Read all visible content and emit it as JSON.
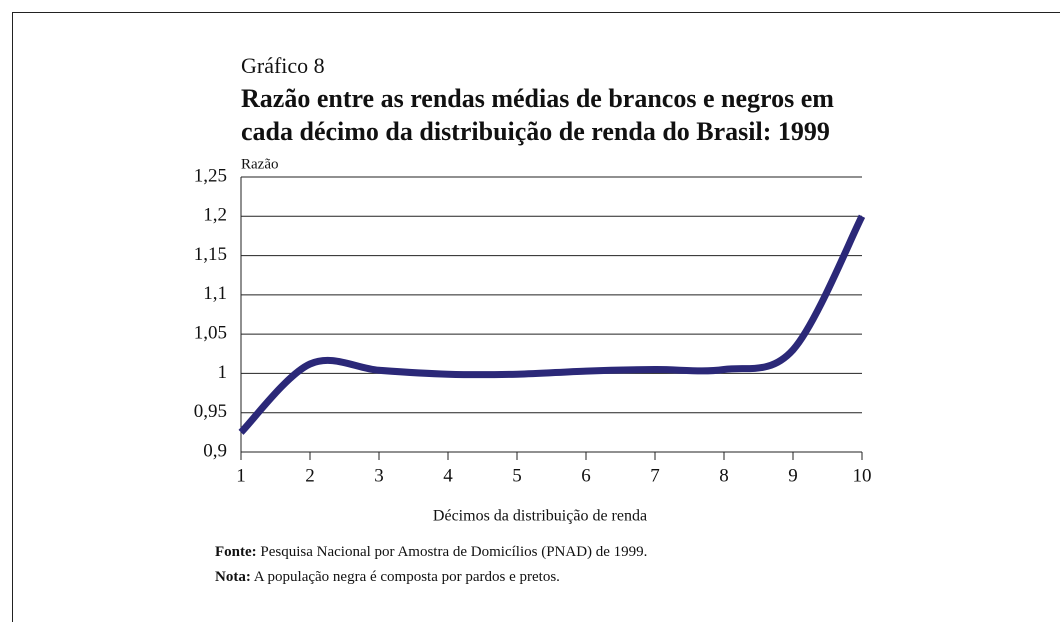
{
  "chart_data": {
    "type": "line",
    "label": "Gráfico 8",
    "title": [
      "Razão entre as rendas médias de brancos e negros em",
      "cada décimo da distribuição de renda do Brasil: 1999"
    ],
    "ylabel": "Razão",
    "xlabel": "Décimos da distribuição de renda",
    "x": [
      1,
      2,
      3,
      4,
      5,
      6,
      7,
      8,
      9,
      10
    ],
    "series": [
      {
        "name": "Razão",
        "color": "#2b2878",
        "values": [
          0.925,
          1.012,
          1.004,
          0.999,
          0.999,
          1.003,
          1.005,
          1.005,
          1.03,
          1.2
        ]
      }
    ],
    "xlim": [
      1,
      10
    ],
    "xticks": [
      1,
      2,
      3,
      4,
      5,
      6,
      7,
      8,
      9,
      10
    ],
    "ylim": [
      0.9,
      1.25
    ],
    "yticks": [
      {
        "value": 0.9,
        "label": "0,9"
      },
      {
        "value": 0.95,
        "label": "0,95"
      },
      1,
      {
        "value": 1.05,
        "label": "1,05"
      },
      {
        "value": 1.1,
        "label": "1,1"
      },
      {
        "value": 1.15,
        "label": "1,15"
      },
      {
        "value": 1.2,
        "label": "1,2"
      },
      {
        "value": 1.25,
        "label": "1,25"
      }
    ],
    "grid": true,
    "notes": [
      {
        "label": "Fonte:",
        "text": "Pesquisa Nacional por Amostra de Domicílios (PNAD) de 1999."
      },
      {
        "label": "Nota:",
        "text": "A população negra é composta por pardos e pretos."
      }
    ]
  }
}
